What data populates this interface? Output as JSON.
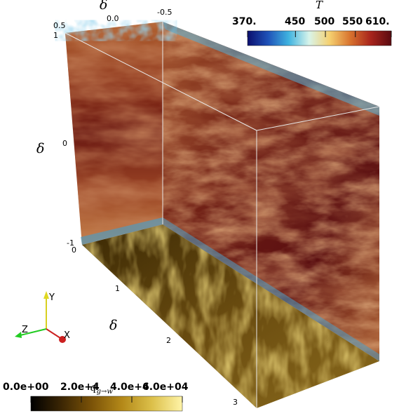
{
  "temperature_colorbar": {
    "title": "T",
    "ticks": [
      "370.",
      "450",
      "500",
      "550",
      "610."
    ],
    "tick_values": [
      370,
      450,
      500,
      550,
      610
    ],
    "range": [
      370,
      610
    ],
    "colors": [
      "#0b0f6e",
      "#1f52b8",
      "#3fb3e0",
      "#d8f4ea",
      "#f5d070",
      "#d8732e",
      "#a8241c",
      "#5a0a10"
    ]
  },
  "heatflux_colorbar": {
    "title": "q",
    "title_subscript": "g→w",
    "ticks": [
      "0.0e+00",
      "2.0e+4",
      "4.0e+4",
      "6.0e+04"
    ],
    "tick_values": [
      0,
      20000,
      40000,
      60000
    ],
    "range": [
      0,
      60000
    ],
    "colors": [
      "#000000",
      "#3b2604",
      "#7a5208",
      "#b38818",
      "#dcc04a",
      "#fff4a8"
    ]
  },
  "axes_labels": {
    "top_symbol": "δ",
    "left_symbol": "δ",
    "bottom_symbol": "δ",
    "top_ticks": [
      "0.5",
      "0.0",
      "-0.5"
    ],
    "left_ticks": [
      "1",
      "0",
      "-1"
    ],
    "bottom_ticks": [
      "0",
      "1",
      "2",
      "3"
    ]
  },
  "orientation": {
    "y": "Y",
    "z": "Z",
    "x": "X"
  },
  "field_colors": {
    "deep_red": "#5e0e0e",
    "mid_red": "#8a2a18",
    "warm": "#b8552c",
    "pale": "#d89a5c",
    "cold": "#3fa6d6",
    "floor_dark": "#4a3304",
    "floor_mid": "#7a5a14",
    "floor_light": "#c7a43c"
  }
}
